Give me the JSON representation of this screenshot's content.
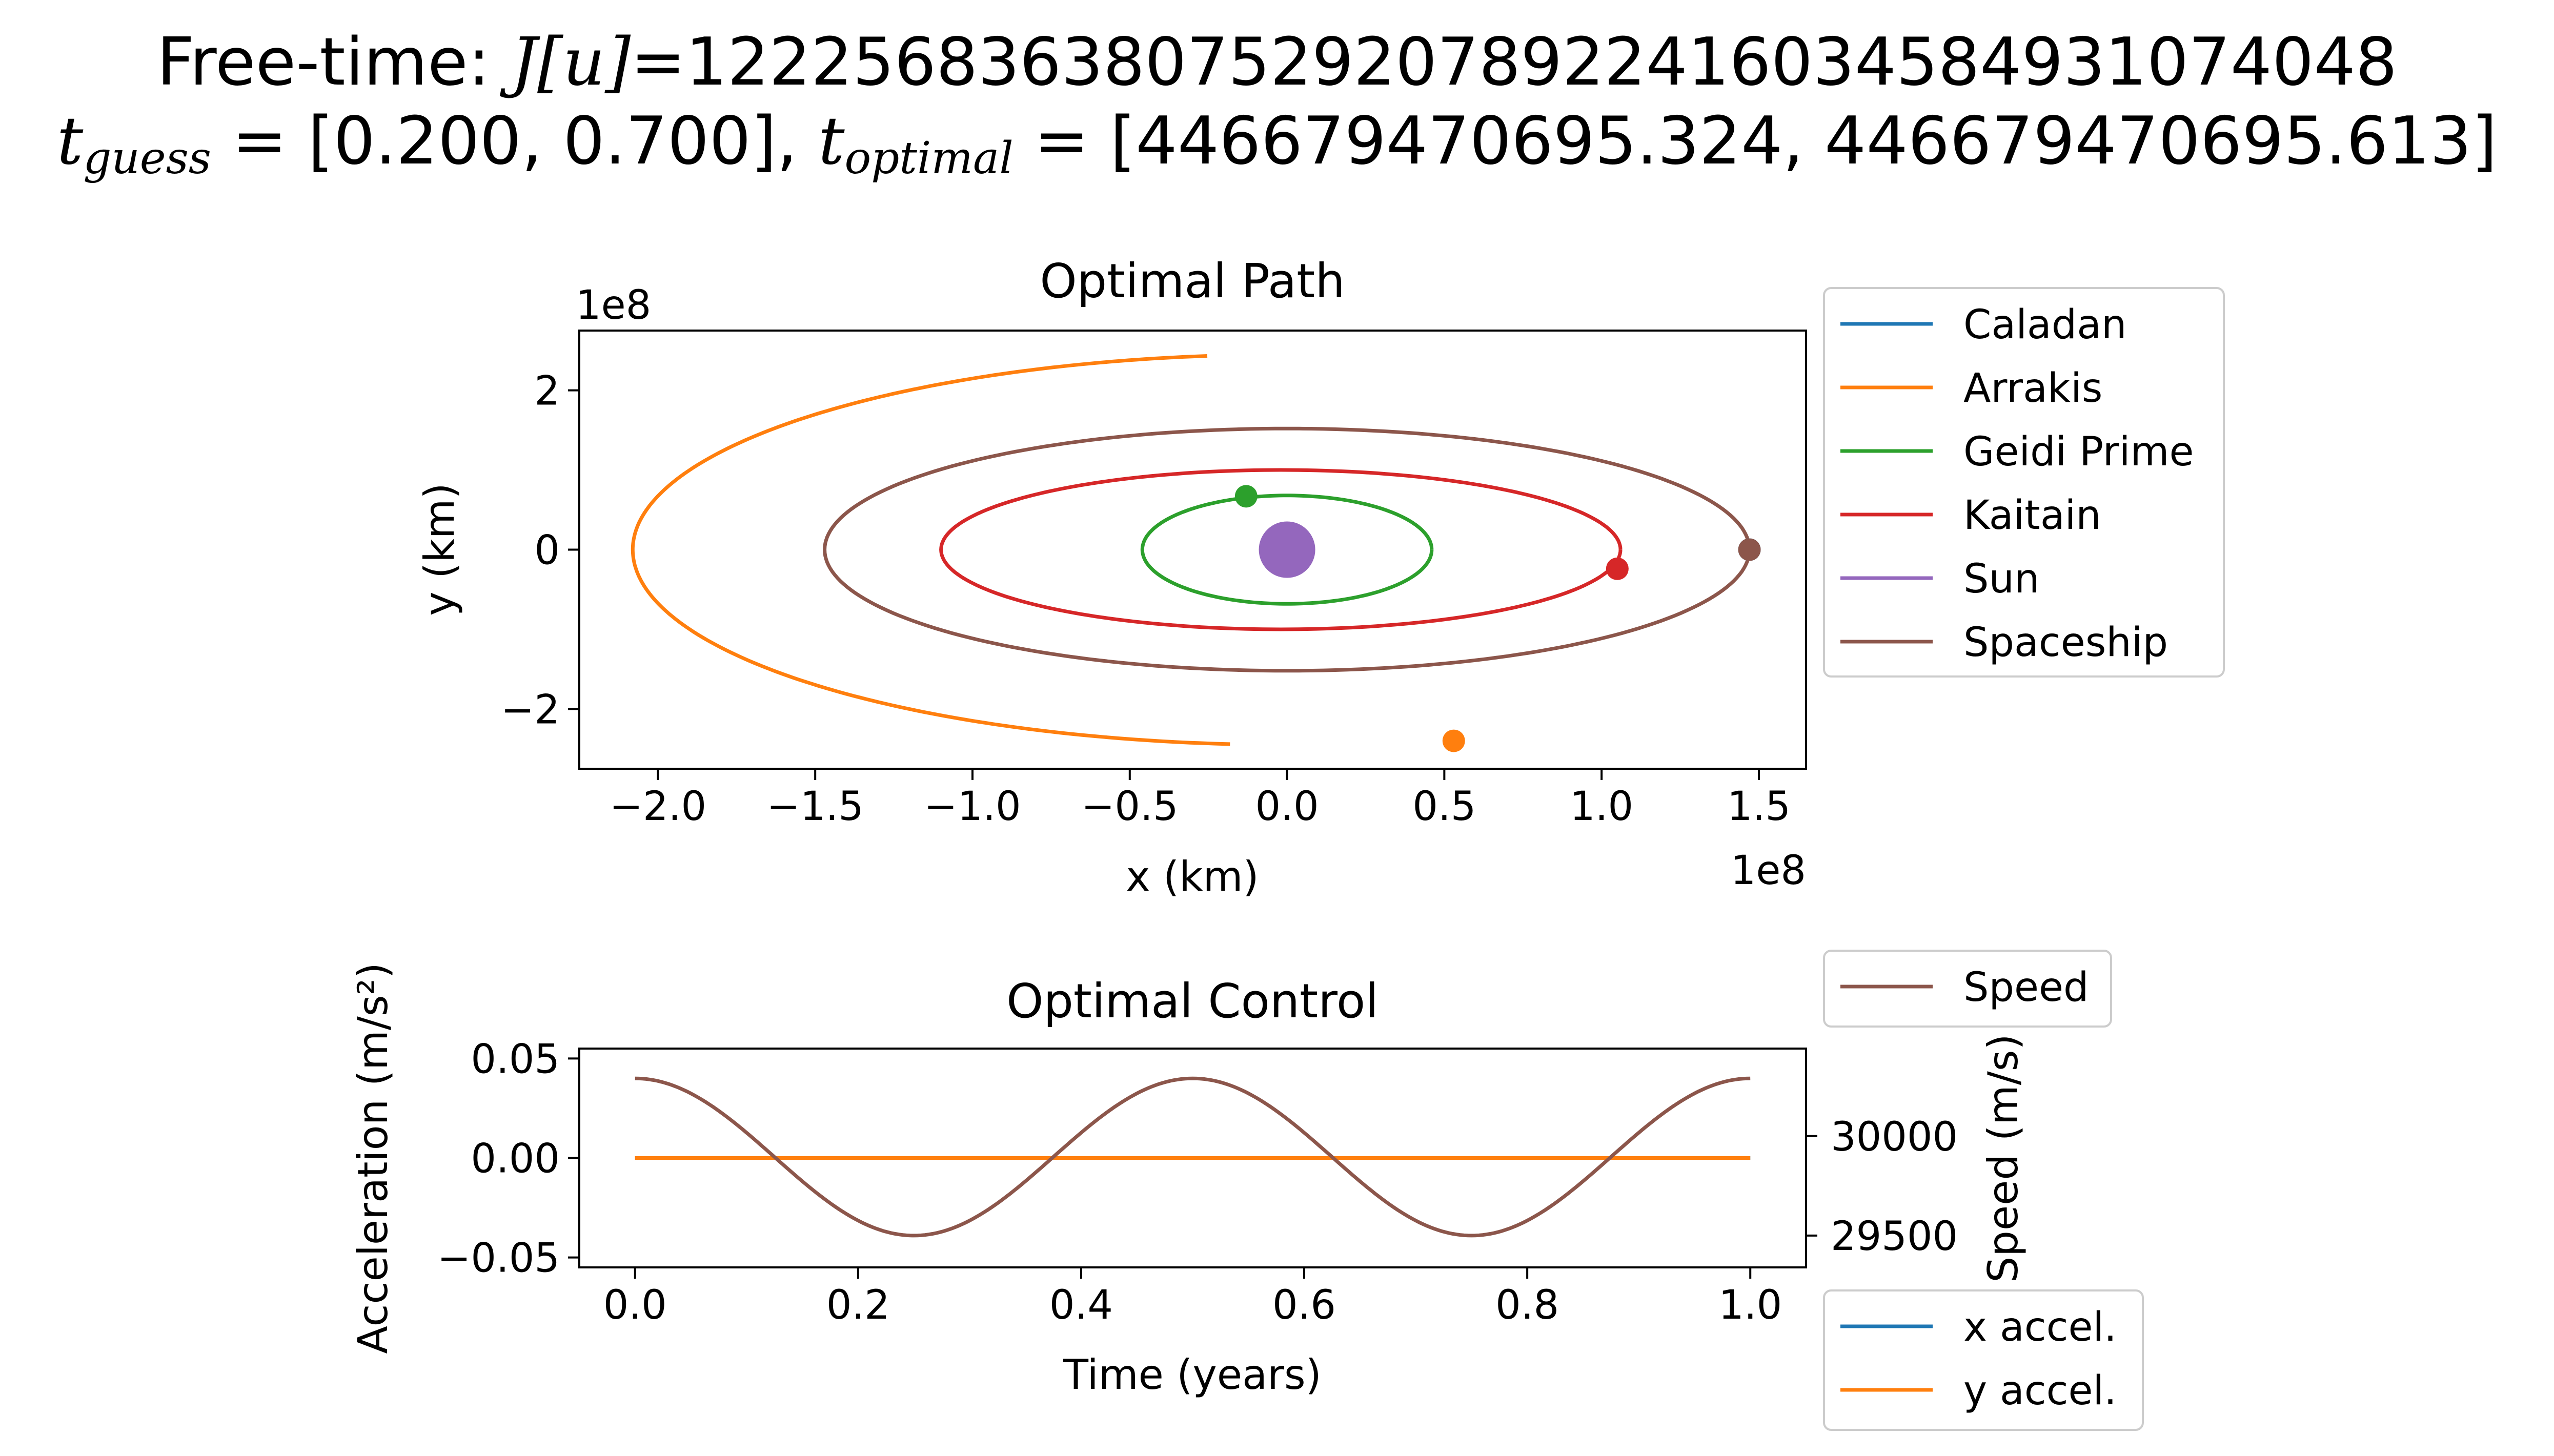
{
  "suptitle": {
    "line1_prefix": "Free-time: ",
    "line1_symbol": "J[u]",
    "line1_value": "=1222568363807529207892241603458493107404 8",
    "line2_guess_label": "guess",
    "line2_guess_value": " = [0.200, 0.700], ",
    "line2_opt_label": "optimal",
    "line2_opt_value": " = [446679470695.324, 446679470695.613]"
  },
  "colors": {
    "Caladan": "#1f77b4",
    "Arrakis": "#ff7f0e",
    "Geidi Prime": "#2ca02c",
    "Kaitain": "#d62728",
    "Sun": "#9467bd",
    "Spaceship": "#8c564b"
  },
  "chart_data": [
    {
      "id": "optimal-path",
      "type": "line",
      "title": "Optimal Path",
      "xlabel": "x (km)",
      "ylabel": "y (km)",
      "x_offset_label": "1e8",
      "y_offset_label": "1e8",
      "xlim": [
        -2.25,
        1.65
      ],
      "ylim": [
        -2.75,
        2.75
      ],
      "xticks": [
        -2.0,
        -1.5,
        -1.0,
        -0.5,
        0.0,
        0.5,
        1.0,
        1.5
      ],
      "xtick_labels": [
        "−2.0",
        "−1.5",
        "−1.0",
        "−0.5",
        "0.0",
        "0.5",
        "1.0",
        "1.5"
      ],
      "yticks": [
        -2,
        0,
        2
      ],
      "ytick_labels": [
        "−2",
        "0",
        "2"
      ],
      "legend": "outside right",
      "series": [
        {
          "name": "Caladan",
          "orbit": {
            "a": 1.47,
            "b": 0,
            "cx": 0.0
          },
          "end": [
            1.47,
            0.0
          ],
          "arc_deg": [
            0,
            0
          ]
        },
        {
          "name": "Arrakis",
          "orbit": {
            "a": 2.08,
            "b": 2.45,
            "cx": 0.0
          },
          "end": [
            0.53,
            -2.4
          ],
          "arc_deg": [
            97,
            265
          ]
        },
        {
          "name": "Geidi Prime",
          "orbit": {
            "a": 0.46,
            "b": 0.68,
            "cx": 0.0
          },
          "end": [
            -0.13,
            0.67
          ],
          "arc_deg": [
            0,
            360
          ]
        },
        {
          "name": "Kaitain",
          "orbit": {
            "a": 1.08,
            "b": 1.0,
            "cx": -0.02
          },
          "end": [
            1.05,
            -0.24
          ],
          "arc_deg": [
            0,
            360
          ]
        },
        {
          "name": "Sun",
          "orbit": {
            "a": 0,
            "b": 0,
            "cx": 0.0
          },
          "end": [
            0.0,
            0.0
          ],
          "arc_deg": [
            0,
            0
          ]
        },
        {
          "name": "Spaceship",
          "orbit": {
            "a": 1.47,
            "b": 1.52,
            "cx": 0.0
          },
          "end": [
            1.47,
            0.0
          ],
          "arc_deg": [
            0,
            360
          ]
        }
      ]
    },
    {
      "id": "optimal-control",
      "type": "line",
      "title": "Optimal Control",
      "xlabel": "Time (years)",
      "ylabel": "Acceleration (m/s²)",
      "ylabel_right": "Speed (m/s)",
      "xlim": [
        -0.05,
        1.05
      ],
      "ylim": [
        -0.055,
        0.055
      ],
      "ylim_right": [
        29340,
        30440
      ],
      "xticks": [
        0.0,
        0.2,
        0.4,
        0.6,
        0.8,
        1.0
      ],
      "xtick_labels": [
        "0.0",
        "0.2",
        "0.4",
        "0.6",
        "0.8",
        "1.0"
      ],
      "yticks": [
        -0.05,
        0.0,
        0.05
      ],
      "ytick_labels": [
        "−0.05",
        "0.00",
        "0.05"
      ],
      "yticks_right": [
        29500,
        30000
      ],
      "ytick_labels_right": [
        "29500",
        "30000"
      ],
      "legend": "outside right",
      "series": [
        {
          "name": "x accel.",
          "x": [
            0.0,
            1.0
          ],
          "y": [
            0.0,
            0.0
          ],
          "axis": "left"
        },
        {
          "name": "y accel.",
          "x": [
            0.0,
            1.0
          ],
          "y": [
            0.0,
            0.0
          ],
          "axis": "left"
        },
        {
          "name": "Speed",
          "x": [
            0.0,
            0.125,
            0.25,
            0.375,
            0.5,
            0.625,
            0.75,
            0.875,
            1.0
          ],
          "y": [
            30290,
            29990,
            29500,
            29990,
            30290,
            29990,
            29500,
            29990,
            30290
          ],
          "axis": "right"
        }
      ]
    }
  ]
}
